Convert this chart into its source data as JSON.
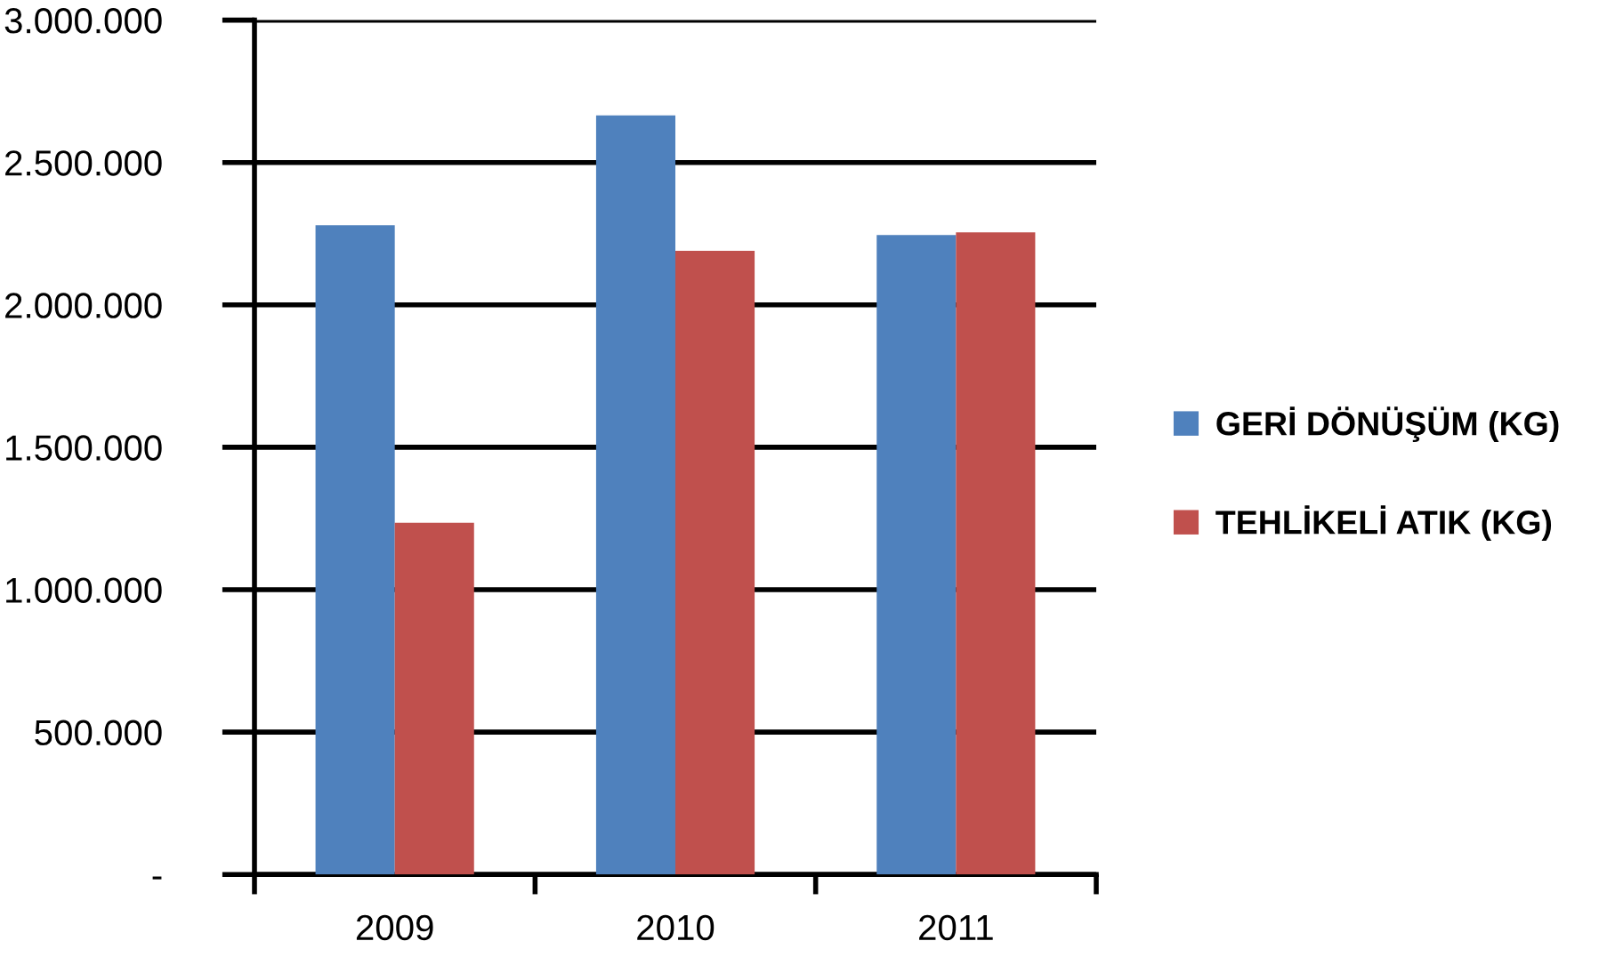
{
  "chart_data": {
    "type": "bar",
    "categories": [
      "2009",
      "2010",
      "2011"
    ],
    "series": [
      {
        "name": "GERİ DÖNÜŞÜM (KG)",
        "color": "#4f81bd",
        "values": [
          2280000,
          2665000,
          2245000
        ]
      },
      {
        "name": "TEHLİKELİ ATIK (KG)",
        "color": "#c0504d",
        "values": [
          1235000,
          2190000,
          2255000
        ]
      }
    ],
    "ylim": [
      0,
      3000000
    ],
    "yticks": [
      {
        "value": 0,
        "label": "-"
      },
      {
        "value": 500000,
        "label": "500.000"
      },
      {
        "value": 1000000,
        "label": "1.000.000"
      },
      {
        "value": 1500000,
        "label": "1.500.000"
      },
      {
        "value": 2000000,
        "label": "2.000.000"
      },
      {
        "value": 2500000,
        "label": "2.500.000"
      },
      {
        "value": 3000000,
        "label": "3.000.000"
      }
    ],
    "grid": "y",
    "legend": "right"
  }
}
